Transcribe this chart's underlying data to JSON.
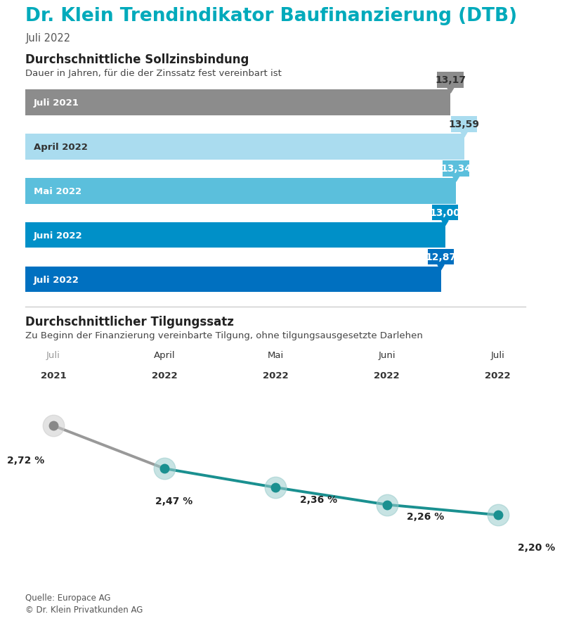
{
  "title": "Dr. Klein Trendindikator Baufinanzierung (DTB)",
  "subtitle": "Juli 2022",
  "title_color": "#00aabb",
  "background_color": "#ffffff",
  "bar_section_title": "Durchschnittliche Sollzinsbindung",
  "bar_section_subtitle": "Dauer in Jahren, für die der Zinssatz fest vereinbart ist",
  "bars": [
    {
      "label": "Juli 2021",
      "value": 13.17,
      "color": "#8c8c8c",
      "label_color": "#ffffff",
      "tag_color": "#8c8c8c",
      "tag_text_color": "#333333"
    },
    {
      "label": "April 2022",
      "value": 13.59,
      "color": "#aadcef",
      "label_color": "#333333",
      "tag_color": "#aadcef",
      "tag_text_color": "#333333"
    },
    {
      "label": "Mai 2022",
      "value": 13.34,
      "color": "#5bbfdc",
      "label_color": "#ffffff",
      "tag_color": "#5bbfdc",
      "tag_text_color": "#ffffff"
    },
    {
      "label": "Juni 2022",
      "value": 13.0,
      "color": "#0090c8",
      "label_color": "#ffffff",
      "tag_color": "#0090c8",
      "tag_text_color": "#ffffff"
    },
    {
      "label": "Juli 2022",
      "value": 12.87,
      "color": "#0070c0",
      "label_color": "#ffffff",
      "tag_color": "#0070c0",
      "tag_text_color": "#ffffff"
    }
  ],
  "bar_max": 15.5,
  "line_section_title": "Durchschnittlicher Tilgungssatz",
  "line_section_subtitle": "Zu Beginn der Finanzierung vereinbarte Tilgung, ohne tilgungsausgesetzte Darlehen",
  "line_x_labels_top": [
    "Juli",
    "April",
    "Mai",
    "Juni",
    "Juli"
  ],
  "line_x_labels_bot": [
    "2021",
    "2022",
    "2022",
    "2022",
    "2022"
  ],
  "line_x_label_colors": [
    "#999999",
    "#333333",
    "#333333",
    "#333333",
    "#333333"
  ],
  "line_values": [
    2.72,
    2.47,
    2.36,
    2.26,
    2.2
  ],
  "line_value_labels": [
    "2,72 %",
    "2,47 %",
    "2,36 %",
    "2,26 %",
    "2,20 %"
  ],
  "line_color_segments": [
    {
      "from": 0,
      "to": 1,
      "color": "#999999"
    },
    {
      "from": 1,
      "to": 4,
      "color": "#1a9090"
    }
  ],
  "line_dot_colors": [
    "#888888",
    "#1a9090",
    "#1a9090",
    "#1a9090",
    "#1a9090"
  ],
  "line_dot_halo_colors": [
    "#cccccc",
    "#99cccc",
    "#99cccc",
    "#99cccc",
    "#99cccc"
  ],
  "footer_line1": "Quelle: Europace AG",
  "footer_line2": "© Dr. Klein Privatkunden AG"
}
